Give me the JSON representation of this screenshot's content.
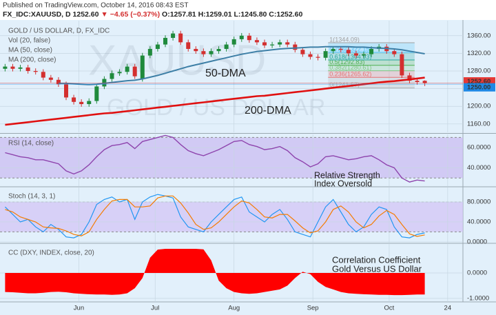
{
  "header": {
    "published": "Published on TradingView.com, October 14, 2016 08:43 EST",
    "symbol": "FX_IDC:XAUUSD, D",
    "last": "1252.60",
    "change": "▼ −4.65 (−0.37%)",
    "ohlc": "O:1257.81 H:1259.01 L:1245.80 C:1252.60"
  },
  "chart_data": [
    {
      "type": "candlestick",
      "title": "GOLD / US DOLLAR, D, FX_IDC",
      "watermark": [
        "XAUUSD",
        "GOLD / US DOLLAR"
      ],
      "indicators": [
        "Vol (20, false)"
      ],
      "x": [
        2,
        5,
        8,
        11,
        14,
        17,
        20,
        23,
        26,
        29,
        32,
        35,
        38,
        41,
        44,
        47,
        50,
        53,
        56,
        59,
        62,
        65,
        68,
        71,
        74,
        77,
        80,
        83,
        86,
        89,
        92,
        95,
        98,
        101,
        104,
        107,
        110,
        113,
        116,
        119,
        122,
        125,
        128,
        131,
        134,
        137,
        140,
        143,
        146,
        149,
        152,
        155,
        158,
        161,
        164,
        167
      ],
      "open": [
        1285,
        1290,
        1285,
        1288,
        1280,
        1278,
        1265,
        1260,
        1250,
        1220,
        1210,
        1205,
        1212,
        1245,
        1262,
        1275,
        1278,
        1290,
        1262,
        1315,
        1330,
        1340,
        1355,
        1365,
        1345,
        1330,
        1325,
        1318,
        1325,
        1330,
        1340,
        1352,
        1360,
        1350,
        1345,
        1338,
        1340,
        1345,
        1340,
        1328,
        1318,
        1312,
        1310,
        1325,
        1330,
        1328,
        1320,
        1315,
        1318,
        1330,
        1335,
        1325,
        1318,
        1270,
        1258,
        1257.81
      ],
      "high": [
        1296,
        1296,
        1294,
        1294,
        1286,
        1284,
        1271,
        1266,
        1256,
        1226,
        1216,
        1218,
        1251,
        1268,
        1281,
        1284,
        1296,
        1296,
        1321,
        1336,
        1346,
        1361,
        1371,
        1371,
        1351,
        1336,
        1331,
        1331,
        1336,
        1346,
        1358,
        1366,
        1366,
        1356,
        1351,
        1346,
        1351,
        1351,
        1346,
        1334,
        1324,
        1318,
        1331,
        1336,
        1336,
        1334,
        1326,
        1324,
        1336,
        1341,
        1341,
        1331,
        1324,
        1276,
        1264,
        1259.01
      ],
      "low": [
        1279,
        1279,
        1279,
        1274,
        1272,
        1259,
        1254,
        1244,
        1214,
        1204,
        1199,
        1199,
        1206,
        1239,
        1256,
        1269,
        1272,
        1262,
        1256,
        1309,
        1324,
        1334,
        1349,
        1339,
        1324,
        1319,
        1312,
        1312,
        1319,
        1324,
        1334,
        1346,
        1344,
        1339,
        1332,
        1332,
        1334,
        1334,
        1322,
        1312,
        1306,
        1304,
        1304,
        1319,
        1322,
        1314,
        1309,
        1309,
        1312,
        1324,
        1319,
        1312,
        1264,
        1252,
        1249,
        1245.8
      ],
      "close": [
        1290,
        1285,
        1288,
        1280,
        1278,
        1265,
        1260,
        1250,
        1220,
        1210,
        1205,
        1212,
        1245,
        1262,
        1275,
        1278,
        1290,
        1268,
        1315,
        1330,
        1340,
        1355,
        1365,
        1345,
        1330,
        1325,
        1318,
        1325,
        1330,
        1340,
        1352,
        1360,
        1350,
        1345,
        1338,
        1340,
        1345,
        1340,
        1328,
        1318,
        1312,
        1310,
        1325,
        1330,
        1328,
        1320,
        1315,
        1318,
        1330,
        1335,
        1325,
        1318,
        1270,
        1258,
        1255,
        1252.6
      ],
      "up_color": "#1f8a3c",
      "down_color": "#d32f2f",
      "series": [
        {
          "name": "MA (50, close)",
          "color": "#3d7fa6",
          "values": [
            null,
            null,
            null,
            null,
            null,
            null,
            null,
            1252,
            1252,
            1251,
            1250,
            1249,
            1250,
            1252,
            1254,
            1256,
            1258,
            1259,
            1262,
            1266,
            1270,
            1275,
            1280,
            1285,
            1290,
            1294,
            1298,
            1302,
            1306,
            1310,
            1314,
            1318,
            1321,
            1324,
            1326,
            1328,
            1330,
            1331,
            1332,
            1333,
            1334,
            1334,
            1335,
            1335,
            1335,
            1335,
            1334,
            1334,
            1333,
            1332,
            1331,
            1330,
            1328,
            1325,
            1322,
            1319
          ]
        },
        {
          "name": "MA (200, close)",
          "color": "#e01010",
          "values": [
            1158,
            1160,
            1162,
            1164,
            1166,
            1168,
            1170,
            1172,
            1174,
            1176,
            1178,
            1180,
            1182,
            1184,
            1185,
            1187,
            1189,
            1191,
            1193,
            1195,
            1197,
            1199,
            1201,
            1203,
            1205,
            1207,
            1209,
            1211,
            1213,
            1215,
            1217,
            1219,
            1221,
            1223,
            1224,
            1226,
            1228,
            1230,
            1232,
            1234,
            1236,
            1238,
            1240,
            1242,
            1244,
            1246,
            1248,
            1250,
            1252,
            1254,
            1256,
            1257,
            1259,
            1261,
            1263,
            1265
          ]
        }
      ],
      "annotations": [
        "50-DMA",
        "200-DMA"
      ],
      "fib": {
        "x": [
          129,
          163
        ],
        "levels": [
          {
            "value": 1241.57,
            "label": "0(1241.57)",
            "color": "#b0b0b0"
          },
          {
            "value": 1265.62,
            "label": "0.236(1265.62)",
            "color": "#e57373"
          },
          {
            "value": 1280.61,
            "label": "0.382(1280.61)",
            "color": "#81c784"
          },
          {
            "value": 1292.83,
            "label": "0.5(1292.83)",
            "color": "#4caf50"
          },
          {
            "value": 1304.93,
            "label": "0.618(1304.93)",
            "color": "#26a69a"
          },
          {
            "value": 1322.15,
            "label": "0.786(1322.15)",
            "color": "#4fc3f7"
          },
          {
            "value": 1344.09,
            "label": "1(1344.09)",
            "color": "#9e9e9e"
          }
        ]
      },
      "price_tags": [
        {
          "value": 1252.6,
          "label": "1252.60",
          "color": "#e53935"
        },
        {
          "value": 1250,
          "label": "1250.00",
          "color": "#1e88e5"
        }
      ],
      "xlim": [
        0,
        182
      ],
      "ylim": [
        1141,
        1394
      ],
      "yticks": [
        {
          "value": 1160,
          "label": "1160.00"
        },
        {
          "value": 1200,
          "label": "1200.00"
        },
        {
          "value": 1240,
          "label": "1240.00"
        },
        {
          "value": 1280,
          "label": "1280.00"
        },
        {
          "value": 1320,
          "label": "1320.00"
        },
        {
          "value": 1360,
          "label": "1360.00"
        }
      ]
    },
    {
      "type": "line",
      "title": "RSI (14, close)",
      "color": "#8e44ad",
      "band": [
        30,
        70
      ],
      "band_color": "#cbbdf2",
      "x": [
        2,
        5,
        8,
        11,
        14,
        17,
        20,
        23,
        26,
        29,
        32,
        35,
        38,
        41,
        44,
        47,
        50,
        53,
        56,
        59,
        62,
        65,
        68,
        71,
        74,
        77,
        80,
        83,
        86,
        89,
        92,
        95,
        98,
        101,
        104,
        107,
        110,
        113,
        116,
        119,
        122,
        125,
        128,
        131,
        134,
        137,
        140,
        143,
        146,
        149,
        152,
        155,
        158,
        161,
        164,
        167
      ],
      "values": [
        55,
        53,
        51,
        50,
        48,
        48,
        46,
        44,
        37,
        34,
        37,
        43,
        51,
        58,
        62,
        63,
        65,
        59,
        66,
        68,
        70,
        72,
        70,
        63,
        57,
        54,
        52,
        55,
        58,
        62,
        66,
        67,
        63,
        61,
        58,
        59,
        61,
        57,
        50,
        46,
        41,
        44,
        51,
        52,
        50,
        48,
        49,
        51,
        52,
        48,
        43,
        40,
        30,
        26,
        28,
        27
      ],
      "annotations": [
        "Relative Strength",
        "Index Oversold"
      ],
      "xlim": [
        0,
        182
      ],
      "ylim": [
        22,
        73
      ],
      "yticks": [
        {
          "value": 40,
          "label": "40.0000"
        },
        {
          "value": 60,
          "label": "60.0000"
        }
      ]
    },
    {
      "type": "line",
      "title": "Stoch (14, 3, 1)",
      "band": [
        20,
        80
      ],
      "band_color": "#d3c6f6",
      "x": [
        2,
        5,
        8,
        11,
        14,
        17,
        20,
        23,
        26,
        29,
        32,
        35,
        38,
        41,
        44,
        47,
        50,
        53,
        56,
        59,
        62,
        65,
        68,
        71,
        74,
        77,
        80,
        83,
        86,
        89,
        92,
        95,
        98,
        101,
        104,
        107,
        110,
        113,
        116,
        119,
        122,
        125,
        128,
        131,
        134,
        137,
        140,
        143,
        146,
        149,
        152,
        155,
        158,
        161,
        164,
        167
      ],
      "series": [
        {
          "color": "#2196f3",
          "values": [
            70,
            55,
            40,
            45,
            30,
            20,
            35,
            25,
            10,
            8,
            15,
            40,
            75,
            85,
            90,
            80,
            85,
            45,
            80,
            90,
            95,
            92,
            88,
            50,
            30,
            25,
            20,
            40,
            55,
            70,
            85,
            90,
            60,
            50,
            40,
            55,
            65,
            45,
            20,
            15,
            10,
            40,
            70,
            85,
            60,
            35,
            20,
            30,
            55,
            70,
            65,
            30,
            10,
            8,
            15,
            18
          ]
        },
        {
          "color": "#f57c00",
          "values": [
            65,
            60,
            50,
            45,
            40,
            30,
            28,
            27,
            22,
            15,
            12,
            20,
            45,
            65,
            82,
            85,
            85,
            70,
            70,
            72,
            88,
            92,
            92,
            78,
            58,
            35,
            25,
            28,
            40,
            55,
            70,
            82,
            78,
            65,
            50,
            48,
            55,
            55,
            42,
            28,
            18,
            22,
            40,
            65,
            72,
            60,
            40,
            28,
            35,
            52,
            63,
            55,
            35,
            16,
            11,
            14
          ]
        }
      ],
      "xlim": [
        0,
        182
      ],
      "ylim": [
        -1.5,
        109
      ],
      "yticks": [
        {
          "value": 0,
          "label": "0.0000"
        },
        {
          "value": 40,
          "label": "40.0000"
        },
        {
          "value": 80,
          "label": "80.0000"
        }
      ]
    },
    {
      "type": "area",
      "title": "CC (DXY, INDEX, close, 20)",
      "color": "#ff0000",
      "x": [
        2,
        5,
        8,
        11,
        14,
        17,
        20,
        23,
        26,
        29,
        32,
        35,
        38,
        41,
        44,
        47,
        50,
        53,
        56,
        59,
        62,
        65,
        68,
        71,
        74,
        77,
        80,
        83,
        86,
        89,
        92,
        95,
        98,
        101,
        104,
        107,
        110,
        113,
        116,
        119,
        122,
        125,
        128,
        131,
        134,
        137,
        140,
        143,
        146,
        149,
        152,
        155,
        158,
        161,
        164,
        167
      ],
      "values": [
        -0.75,
        -0.76,
        -0.78,
        -0.8,
        -0.8,
        -0.78,
        -0.75,
        -0.74,
        -0.76,
        -0.8,
        -0.82,
        -0.84,
        -0.85,
        -0.85,
        -0.86,
        -0.85,
        -0.8,
        -0.6,
        -0.2,
        0.6,
        0.92,
        0.95,
        0.95,
        0.95,
        0.95,
        0.95,
        0.93,
        0.5,
        -0.3,
        -0.6,
        -0.75,
        -0.8,
        -0.82,
        -0.8,
        -0.75,
        -0.7,
        -0.65,
        -0.5,
        -0.2,
        0.05,
        -0.05,
        -0.35,
        -0.55,
        -0.65,
        -0.75,
        -0.8,
        -0.82,
        -0.84,
        -0.85,
        -0.86,
        -0.86,
        -0.87,
        -0.87,
        -0.86,
        -0.85,
        -0.85
      ],
      "annotations": [
        "Correlation Coefficient",
        "Gold Versus US Dollar"
      ],
      "xlim": [
        0,
        182
      ],
      "ylim": [
        -1.14,
        1.14
      ],
      "yticks": [
        {
          "value": -1,
          "label": "-1.0000"
        },
        {
          "value": 0,
          "label": "0.0000"
        }
      ],
      "xticks": [
        {
          "value": 31,
          "label": "Jun"
        },
        {
          "value": 61,
          "label": "Jul"
        },
        {
          "value": 92,
          "label": "Aug"
        },
        {
          "value": 123,
          "label": "Sep"
        },
        {
          "value": 153,
          "label": "Oct"
        },
        {
          "value": 176,
          "label": "24"
        }
      ]
    }
  ]
}
